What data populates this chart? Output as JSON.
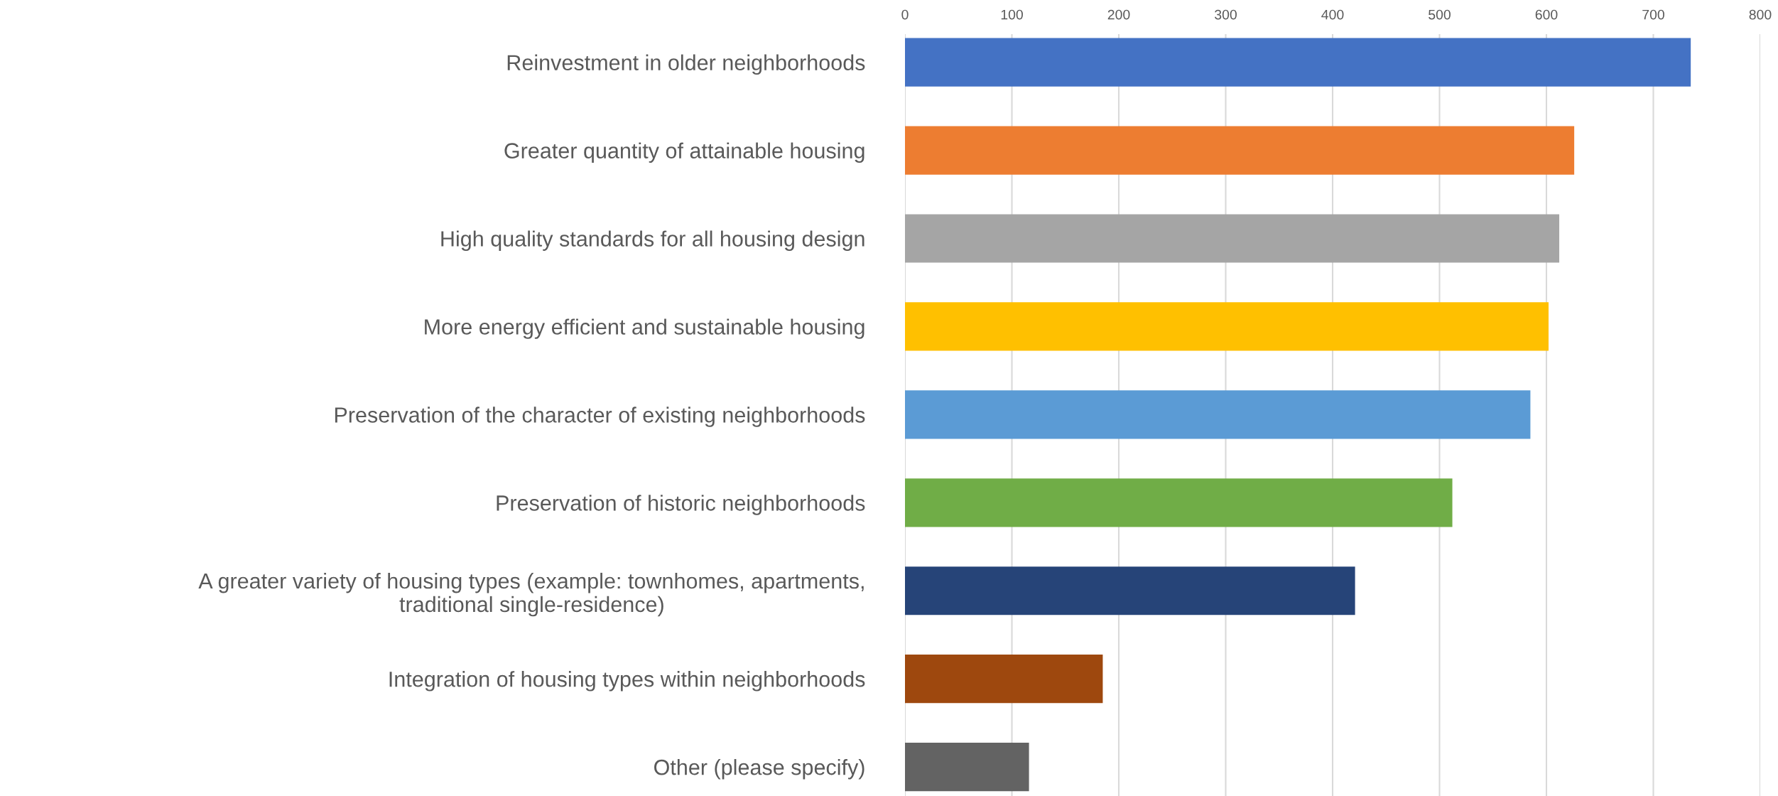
{
  "chart_data": {
    "type": "bar",
    "orientation": "horizontal",
    "categories": [
      "Reinvestment in older neighborhoods",
      "Greater quantity of attainable housing",
      "High quality standards for all housing design",
      "More energy efficient and sustainable housing",
      "Preservation of the character of existing neighborhoods",
      "Preservation of historic neighborhoods",
      "A greater variety of housing types (example: townhomes, apartments,\ntraditional single-residence)",
      "Integration of housing types within neighborhoods",
      "Other (please specify)"
    ],
    "values": [
      735,
      626,
      612,
      602,
      585,
      512,
      421,
      185,
      116
    ],
    "colors": [
      "#4472c4",
      "#ed7d31",
      "#a5a5a5",
      "#ffc000",
      "#5b9bd5",
      "#70ad47",
      "#264478",
      "#9e480e",
      "#636363"
    ],
    "xlim": [
      0,
      800
    ],
    "xticks": [
      0,
      100,
      200,
      300,
      400,
      500,
      600,
      700,
      800
    ],
    "grid": "x",
    "legend": false
  }
}
